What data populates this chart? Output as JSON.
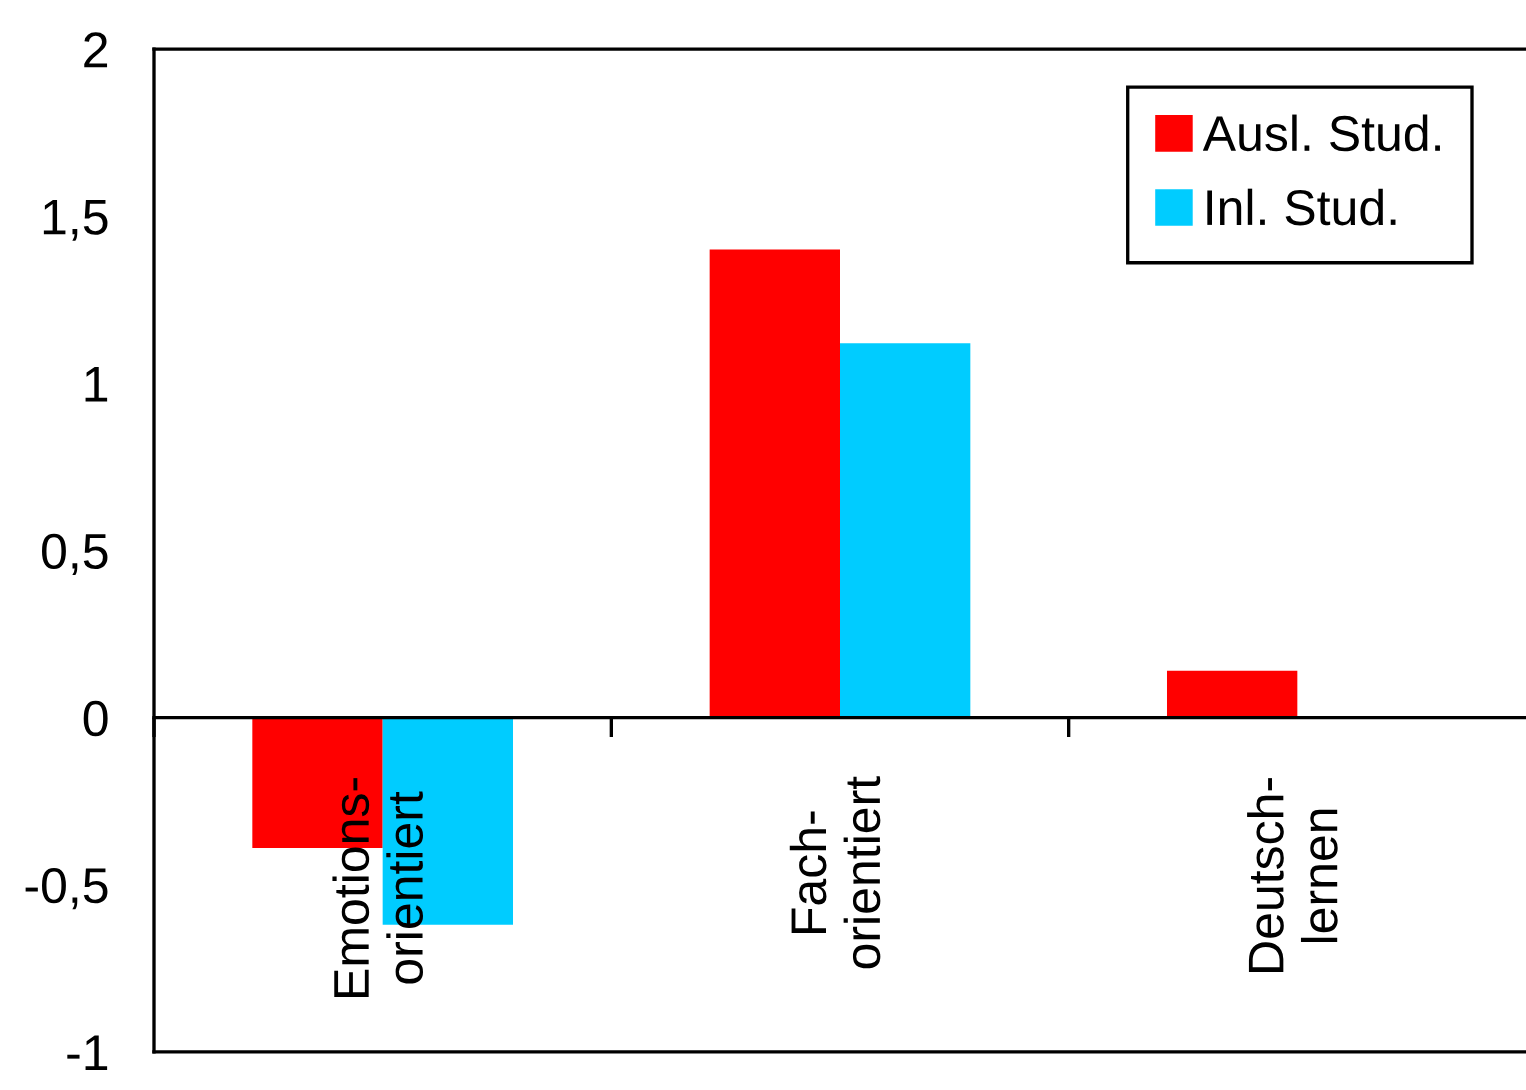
{
  "chart_data": {
    "type": "bar",
    "categories": [
      "Emotions-\norientiert",
      "Fach-\norientiert",
      "Deutsch-\nlernen"
    ],
    "series": [
      {
        "name": "Ausl. Stud.",
        "color": "#ff0000",
        "values": [
          -0.39,
          1.4,
          0.14
        ]
      },
      {
        "name": "Inl. Stud.",
        "color": "#00ccff",
        "values": [
          -0.62,
          1.12,
          null
        ]
      }
    ],
    "ylim": [
      -1,
      2
    ],
    "yticks": [
      -1,
      {
        "value": -0.5,
        "label": "-0,5"
      },
      0,
      {
        "value": 0.5,
        "label": "0,5"
      },
      1,
      {
        "value": 1.5,
        "label": "1,5"
      },
      2
    ],
    "legend": "top right"
  }
}
